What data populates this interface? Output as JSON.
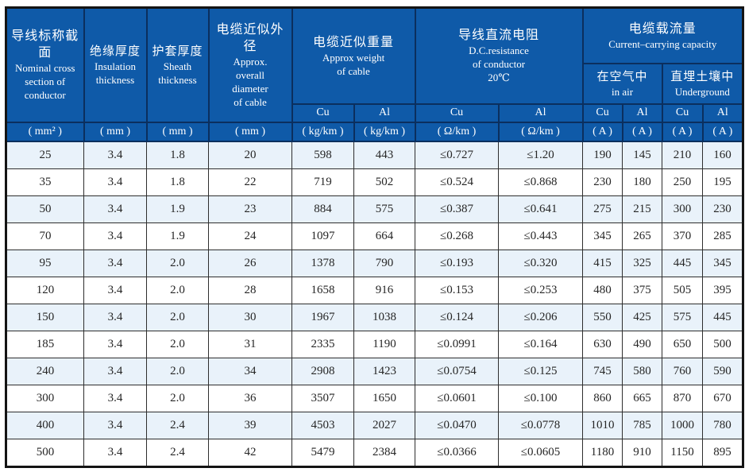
{
  "colors": {
    "header_bg": "#0f5aa8",
    "header_border": "#0b2f5e",
    "header_text": "#ffffff",
    "row_alt": "#e9f2fa",
    "outer_border": "#141414"
  },
  "header": {
    "cross_section": {
      "zh": "导线标称截面",
      "en": "Nominal cross\nsection of\nconductor"
    },
    "insulation": {
      "zh": "绝缘厚度",
      "en": "Insulation\nthickness"
    },
    "sheath": {
      "zh": "护套厚度",
      "en": "Sheath\nthickness"
    },
    "diameter": {
      "zh": "电缆近似外径",
      "en": "Approx.\noverall\ndiameter\nof cable"
    },
    "weight": {
      "zh": "电缆近似重量",
      "en": "Approx weight\nof cable"
    },
    "resistance": {
      "zh": "导线直流电阻",
      "en": "D.C.resistance\nof conductor\n20℃"
    },
    "capacity": {
      "zh": "电缆载流量",
      "en": "Current–carrying capacity"
    },
    "in_air": {
      "zh": "在空气中",
      "en": "in air"
    },
    "underground": {
      "zh": "直埋土壤中",
      "en": "Underground"
    }
  },
  "cual": [
    "Cu",
    "Al",
    "Cu",
    "Al",
    "Cu",
    "Al",
    "Cu",
    "Al"
  ],
  "units": [
    "( mm² )",
    "( mm )",
    "( mm )",
    "( mm )",
    "( kg/km )",
    "( kg/km )",
    "( Ω/km )",
    "( Ω/km )",
    "( A )",
    "( A )",
    "( A )",
    "( A )"
  ],
  "rows": [
    [
      "25",
      "3.4",
      "1.8",
      "20",
      "598",
      "443",
      "≤0.727",
      "≤1.20",
      "190",
      "145",
      "210",
      "160"
    ],
    [
      "35",
      "3.4",
      "1.8",
      "22",
      "719",
      "502",
      "≤0.524",
      "≤0.868",
      "230",
      "180",
      "250",
      "195"
    ],
    [
      "50",
      "3.4",
      "1.9",
      "23",
      "884",
      "575",
      "≤0.387",
      "≤0.641",
      "275",
      "215",
      "300",
      "230"
    ],
    [
      "70",
      "3.4",
      "1.9",
      "24",
      "1097",
      "664",
      "≤0.268",
      "≤0.443",
      "345",
      "265",
      "370",
      "285"
    ],
    [
      "95",
      "3.4",
      "2.0",
      "26",
      "1378",
      "790",
      "≤0.193",
      "≤0.320",
      "415",
      "325",
      "445",
      "345"
    ],
    [
      "120",
      "3.4",
      "2.0",
      "28",
      "1658",
      "916",
      "≤0.153",
      "≤0.253",
      "480",
      "375",
      "505",
      "395"
    ],
    [
      "150",
      "3.4",
      "2.0",
      "30",
      "1967",
      "1038",
      "≤0.124",
      "≤0.206",
      "550",
      "425",
      "575",
      "445"
    ],
    [
      "185",
      "3.4",
      "2.0",
      "31",
      "2335",
      "1190",
      "≤0.0991",
      "≤0.164",
      "630",
      "490",
      "650",
      "500"
    ],
    [
      "240",
      "3.4",
      "2.0",
      "34",
      "2908",
      "1423",
      "≤0.0754",
      "≤0.125",
      "745",
      "580",
      "760",
      "590"
    ],
    [
      "300",
      "3.4",
      "2.0",
      "36",
      "3507",
      "1650",
      "≤0.0601",
      "≤0.100",
      "860",
      "665",
      "870",
      "670"
    ],
    [
      "400",
      "3.4",
      "2.4",
      "39",
      "4503",
      "2027",
      "≤0.0470",
      "≤0.0778",
      "1010",
      "785",
      "1000",
      "780"
    ],
    [
      "500",
      "3.4",
      "2.4",
      "42",
      "5479",
      "2384",
      "≤0.0366",
      "≤0.0605",
      "1180",
      "910",
      "1150",
      "895"
    ]
  ]
}
